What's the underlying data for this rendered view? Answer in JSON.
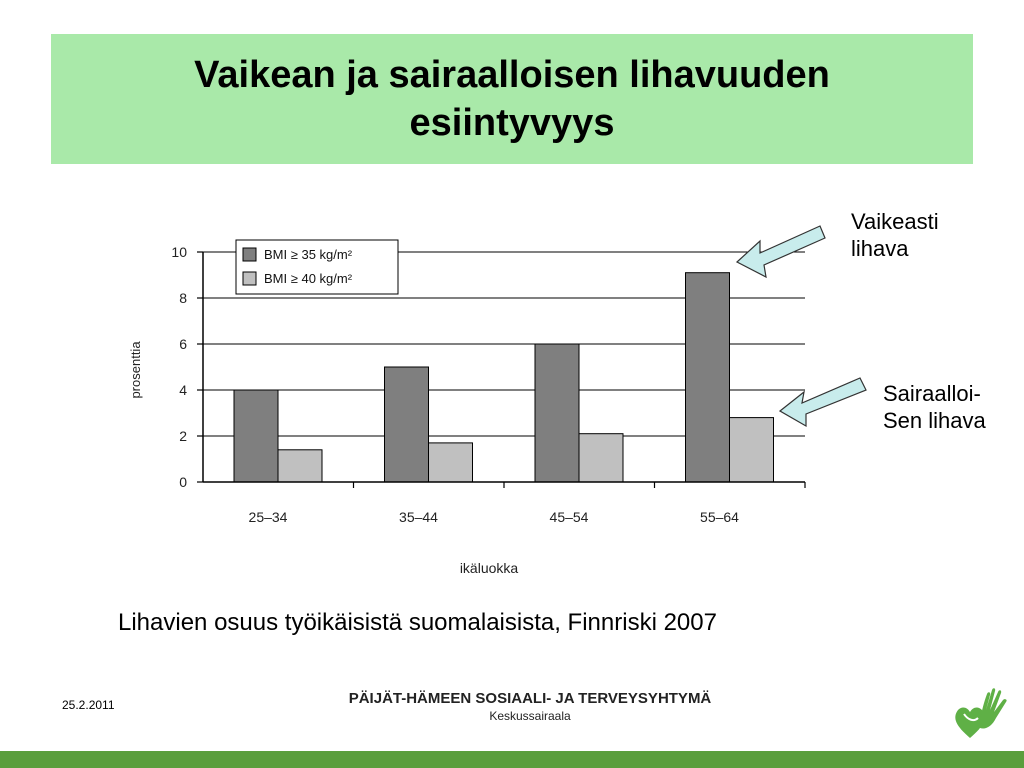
{
  "slide": {
    "title": "Vaikean ja sairaalloisen lihavuuden esiintyvyys",
    "caption": "Lihavien osuus työikäisistä suomalaisista, Finnriski 2007",
    "callout_severe": [
      "Vaikeasti",
      "lihava"
    ],
    "callout_morbid": [
      "Sairaalloi-",
      "Sen lihava"
    ],
    "footer": {
      "date": "25.2.2011",
      "org": "PÄIJÄT-HÄMEEN SOSIAALI- JA TERVEYSYHTYMÄ",
      "unit": "Keskussairaala"
    },
    "colors": {
      "title_bg": "#a9e9a9",
      "bottom_bar": "#5a9e3c",
      "arrow_fill": "#c8ecec",
      "logo": "#5fb046"
    },
    "logo_icon": "hand-heart-icon"
  },
  "chart_data": {
    "type": "bar",
    "title": "",
    "xlabel": "ikäluokka",
    "ylabel": "prosenttia",
    "categories": [
      "25–34",
      "35–44",
      "45–54",
      "55–64"
    ],
    "series": [
      {
        "name": "BMI ≥ 35 kg/m²",
        "values": [
          4.0,
          5.0,
          6.0,
          9.1
        ],
        "color": "#7f7f7f"
      },
      {
        "name": "BMI ≥ 40 kg/m²",
        "values": [
          1.4,
          1.7,
          2.1,
          2.8
        ],
        "color": "#c0c0c0"
      }
    ],
    "ylim": [
      0,
      10
    ],
    "yticks": [
      0,
      2,
      4,
      6,
      8,
      10
    ],
    "grid": true,
    "legend_position": "top-left"
  }
}
